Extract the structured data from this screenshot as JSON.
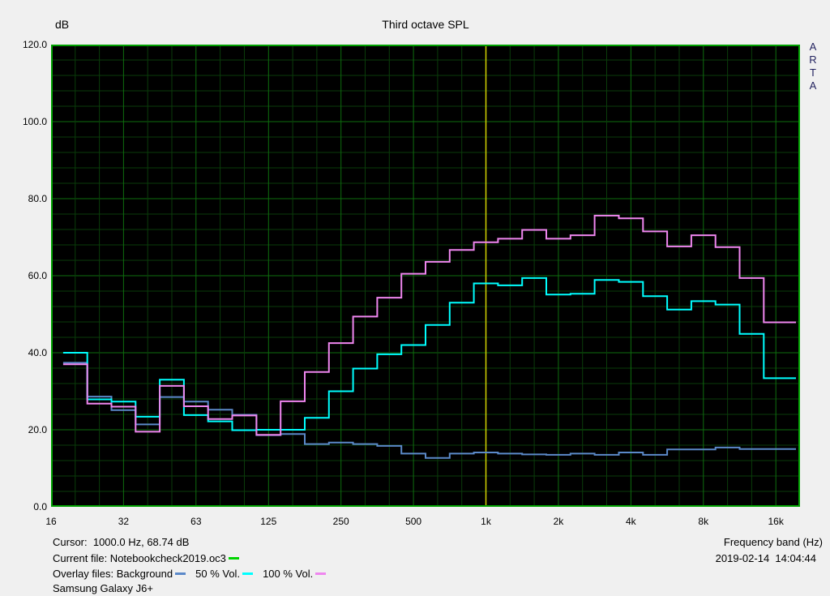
{
  "header": {
    "y_unit": "dB",
    "title": "Third octave SPL"
  },
  "watermark": {
    "letters": [
      "A",
      "R",
      "T",
      "A"
    ]
  },
  "chart_data": {
    "type": "step-line",
    "title": "Third octave SPL",
    "ylabel": "dB",
    "xlabel": "Frequency band (Hz)",
    "ylim": [
      0,
      120
    ],
    "y_minor_step_db": 4,
    "y_major_step_db": 20,
    "y_ticks": [
      {
        "label": "120.0",
        "db": 120
      },
      {
        "label": "100.0",
        "db": 100
      },
      {
        "label": "80.0",
        "db": 80
      },
      {
        "label": "60.0",
        "db": 60
      },
      {
        "label": "40.0",
        "db": 40
      },
      {
        "label": "20.0",
        "db": 20
      },
      {
        "label": "0.0",
        "db": 0
      }
    ],
    "x_ticks": [
      {
        "label": "16",
        "edge": 0
      },
      {
        "label": "32",
        "edge": 3
      },
      {
        "label": "63",
        "edge": 6
      },
      {
        "label": "125",
        "edge": 9
      },
      {
        "label": "250",
        "edge": 12
      },
      {
        "label": "500",
        "edge": 15
      },
      {
        "label": "1k",
        "edge": 18
      },
      {
        "label": "2k",
        "edge": 21
      },
      {
        "label": "4k",
        "edge": 24
      },
      {
        "label": "8k",
        "edge": 27
      },
      {
        "label": "16k",
        "edge": 30
      }
    ],
    "bands_hz": [
      "16",
      "20",
      "25",
      "31.5",
      "40",
      "50",
      "63",
      "80",
      "100",
      "125",
      "160",
      "200",
      "250",
      "315",
      "400",
      "500",
      "630",
      "800",
      "1000",
      "1250",
      "1600",
      "2000",
      "2500",
      "3150",
      "4000",
      "5000",
      "6300",
      "8000",
      "10000",
      "12500",
      "16000"
    ],
    "series": [
      {
        "name": "Background",
        "color": "#5b89c9",
        "values": [
          37.4,
          28.6,
          25.1,
          21.4,
          28.5,
          27.3,
          25.2,
          23.9,
          18.6,
          18.9,
          16.3,
          16.7,
          16.3,
          15.8,
          13.8,
          12.7,
          13.8,
          14.1,
          13.8,
          13.6,
          13.5,
          13.8,
          13.5,
          14.1,
          13.5,
          14.9,
          14.9,
          15.4,
          15.0,
          15.0,
          15.0
        ]
      },
      {
        "name": "50 % Vol.",
        "color": "#00ffff",
        "values": [
          40.0,
          27.9,
          27.3,
          23.4,
          33.0,
          23.8,
          22.2,
          19.9,
          20.0,
          20.0,
          23.1,
          30.0,
          35.9,
          39.6,
          42.0,
          47.2,
          53.0,
          58.0,
          57.5,
          59.4,
          55.1,
          55.3,
          58.9,
          58.4,
          54.7,
          51.2,
          53.4,
          52.5,
          44.9,
          33.4,
          33.4
        ]
      },
      {
        "name": "100 % Vol.",
        "color": "#ef86ef",
        "values": [
          37.0,
          26.8,
          26.0,
          19.5,
          31.4,
          26.1,
          22.8,
          23.7,
          18.7,
          27.4,
          35.0,
          42.5,
          49.4,
          54.3,
          60.5,
          63.6,
          66.7,
          68.7,
          69.6,
          71.9,
          69.6,
          70.5,
          75.6,
          74.9,
          71.5,
          67.6,
          70.5,
          67.4,
          59.4,
          47.9,
          47.9
        ]
      }
    ],
    "cursor": {
      "band_edge": 18,
      "freq_label": "1000.0 Hz",
      "value_db": 68.74,
      "color": "#d2d200"
    },
    "grid": {
      "background": "#000000",
      "minor_color": "#0a3c0a",
      "major_color": "#0e6e0e",
      "border_color": "#00a000",
      "legend_position": "bottom"
    }
  },
  "footer": {
    "cursor_text": "Cursor:  1000.0 Hz, 68.74 dB",
    "frequency_band_label": "Frequency band (Hz)",
    "current_file_text": "Current file: Notebookcheck2019.oc3",
    "current_file_color": "#00d400",
    "datetime": "2019-02-14  14:04:44",
    "overlay_prefix": "Overlay files: Background",
    "overlay_50_label": "50 % Vol.",
    "overlay_100_label": "100 % Vol.",
    "device_name": "Samsung Galaxy J6+"
  }
}
